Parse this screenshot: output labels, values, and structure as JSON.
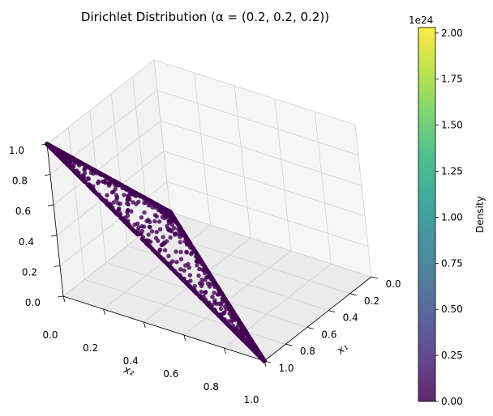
{
  "chart_data": {
    "type": "scatter3d",
    "title": "Dirichlet Distribution (α = (0.2, 0.2, 0.2))",
    "axes": {
      "x": {
        "label": "x₁",
        "lim": [
          0.0,
          1.0
        ],
        "ticks": [
          "0.0",
          "0.2",
          "0.4",
          "0.6",
          "0.8",
          "1.0"
        ]
      },
      "y": {
        "label": "x₂",
        "lim": [
          0.0,
          1.0
        ],
        "ticks": [
          "0.0",
          "0.2",
          "0.4",
          "0.6",
          "0.8",
          "1.0"
        ]
      },
      "z": {
        "label": "",
        "lim": [
          0.0,
          1.0
        ],
        "ticks": [
          "0.0",
          "0.2",
          "0.4",
          "0.6",
          "0.8",
          "1.0"
        ]
      }
    },
    "grid": true,
    "colorbar": {
      "label": "Density",
      "exponent": "1e24",
      "range": [
        0.0,
        2.03
      ],
      "ticks": [
        "0.00",
        "0.25",
        "0.50",
        "0.75",
        "1.00",
        "1.25",
        "1.50",
        "1.75",
        "2.00"
      ],
      "tick_values": [
        0.0,
        0.25,
        0.5,
        0.75,
        1.0,
        1.25,
        1.5,
        1.75,
        2.0
      ],
      "colormap": "viridis",
      "colormap_stops": [
        "#440154",
        "#482878",
        "#3e4989",
        "#31688e",
        "#26828e",
        "#1f9e89",
        "#35b779",
        "#6ece58",
        "#b5de2b",
        "#fde725"
      ]
    },
    "series": [
      {
        "marker_color": "#440154",
        "marker_alpha": 0.8,
        "distribution_alpha": [
          0.2,
          0.2,
          0.2
        ],
        "support": "simplex x1+x2+x3=1"
      }
    ],
    "simplex_vertices": [
      [
        1,
        0,
        0
      ],
      [
        0,
        1,
        0
      ],
      [
        0,
        0,
        1
      ]
    ]
  }
}
